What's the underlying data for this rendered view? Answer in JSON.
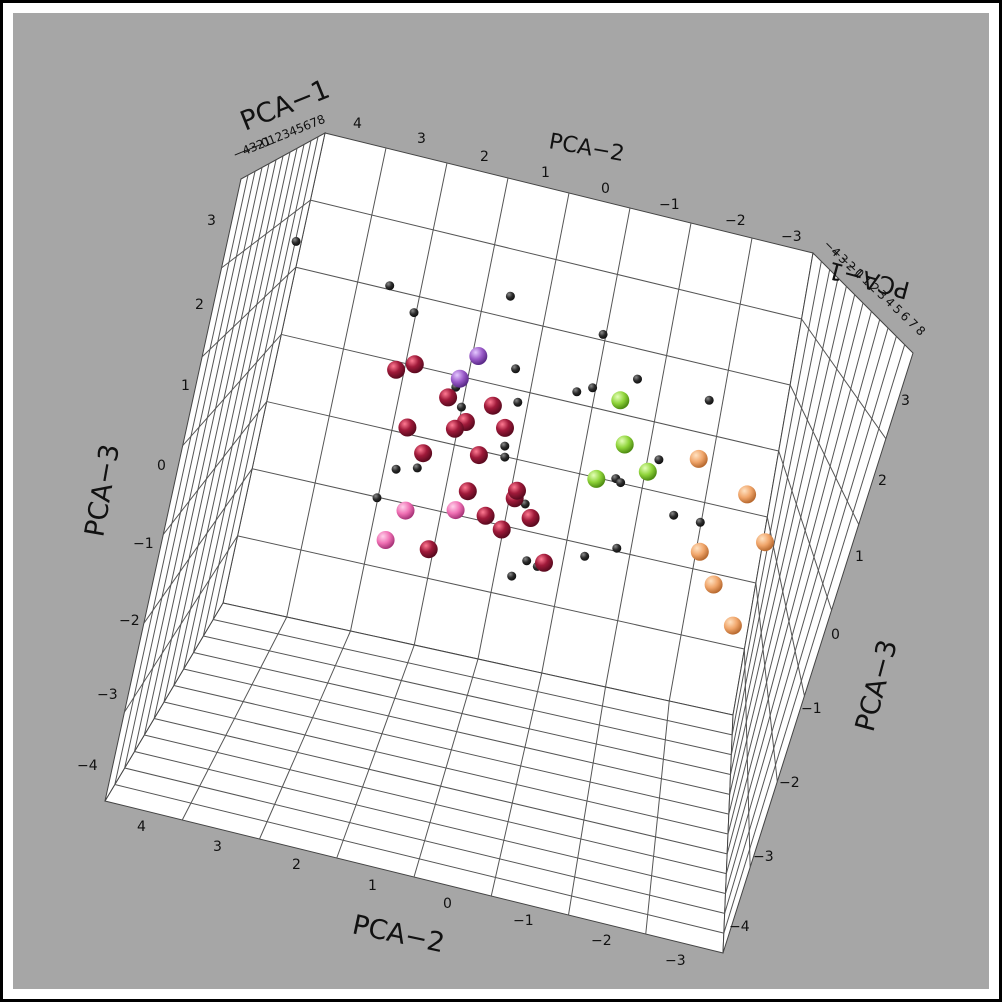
{
  "chart_data": {
    "type": "scatter",
    "projection": "3d",
    "axis_titles": {
      "pca1": "PCA−1",
      "pca2": "PCA−2",
      "pca3": "PCA−3"
    },
    "ticks": {
      "pca2": [
        "4",
        "3",
        "2",
        "1",
        "0",
        "−1",
        "−2",
        "−3"
      ],
      "pca3": [
        "3",
        "2",
        "1",
        "0",
        "−1",
        "−2",
        "−3",
        "−4"
      ],
      "pca1": [
        "−4",
        "−3",
        "−2",
        "−1",
        "0",
        "1",
        "2",
        "3",
        "4",
        "5",
        "6",
        "7",
        "8"
      ]
    },
    "ranges": {
      "pca1": [
        -4,
        8
      ],
      "pca2": [
        -3,
        4
      ],
      "pca3": [
        -4,
        3
      ]
    },
    "grid": true,
    "background": "#a6a6a6",
    "series": [
      {
        "color": "#2b2b2b",
        "marker": "small sphere",
        "points": [
          [
            -2.1,
            4.5,
            2.2
          ],
          [
            0.0,
            3.2,
            1.8
          ],
          [
            1.5,
            1.6,
            2.0
          ],
          [
            -1.0,
            0.1,
            1.9
          ],
          [
            -0.8,
            1.2,
            1.1
          ],
          [
            2.2,
            2.9,
            1.4
          ],
          [
            -2.2,
            1.0,
            0.7
          ],
          [
            -3.0,
            -0.6,
            0.0
          ],
          [
            0.6,
            2.6,
            -0.8
          ],
          [
            1.8,
            0.8,
            -0.9
          ],
          [
            2.5,
            -0.4,
            -0.3
          ],
          [
            -1.2,
            0.3,
            -1.6
          ],
          [
            -0.5,
            1.1,
            -0.2
          ],
          [
            0.2,
            -0.5,
            0.4
          ],
          [
            1.3,
            0.2,
            1.0
          ],
          [
            0.7,
            1.9,
            0.3
          ],
          [
            2.8,
            1.3,
            -0.2
          ],
          [
            -2.6,
            -0.8,
            -1.0
          ],
          [
            0.9,
            -1.3,
            -0.5
          ],
          [
            -1.7,
            2.2,
            -0.6
          ],
          [
            3.2,
            0.5,
            0.8
          ],
          [
            -0.2,
            -1.5,
            1.3
          ],
          [
            1.6,
            -0.9,
            0.2
          ],
          [
            -1.4,
            -1.8,
            -0.4
          ],
          [
            0.4,
            0.7,
            -1.9
          ],
          [
            2.0,
            2.1,
            0.5
          ],
          [
            -0.9,
            2.7,
            -1.2
          ],
          [
            1.1,
            -0.2,
            -1.4
          ],
          [
            -2.4,
            0.4,
            -1.5
          ],
          [
            3.0,
            -0.3,
            1.2
          ]
        ]
      },
      {
        "color": "#a01a3a",
        "marker": "large sphere",
        "points": [
          [
            0.5,
            2.1,
            0.4
          ],
          [
            0.8,
            1.8,
            0.1
          ],
          [
            0.3,
            1.5,
            -0.3
          ],
          [
            1.0,
            2.3,
            -0.5
          ],
          [
            -0.2,
            1.2,
            0.2
          ],
          [
            0.6,
            0.9,
            -0.8
          ],
          [
            1.4,
            1.6,
            -0.9
          ],
          [
            -0.5,
            2.6,
            0.8
          ],
          [
            0.9,
            1.0,
            -1.3
          ],
          [
            0.1,
            0.6,
            -1.0
          ],
          [
            1.2,
            2.6,
            -0.2
          ],
          [
            -0.8,
            1.4,
            0.5
          ],
          [
            0.4,
            0.3,
            -1.6
          ],
          [
            1.7,
            1.3,
            -1.2
          ],
          [
            0.7,
            2.9,
            0.6
          ],
          [
            -1.2,
            0.8,
            -0.6
          ],
          [
            2.2,
            2.0,
            -0.1
          ],
          [
            0.2,
            1.9,
            -1.8
          ]
        ]
      },
      {
        "color": "#f0a56a",
        "marker": "large sphere",
        "points": [
          [
            -2.3,
            -2.4,
            0.2
          ],
          [
            -2.6,
            -2.8,
            -0.4
          ],
          [
            -2.1,
            -2.2,
            -1.2
          ],
          [
            -1.8,
            -1.9,
            -0.8
          ],
          [
            -2.4,
            -2.6,
            -1.7
          ],
          [
            -1.6,
            -1.6,
            0.5
          ]
        ]
      },
      {
        "color": "#8fd43a",
        "marker": "large sphere",
        "points": [
          [
            -0.4,
            -0.3,
            1.0
          ],
          [
            -0.6,
            -0.5,
            0.4
          ],
          [
            -0.3,
            -0.2,
            -0.2
          ],
          [
            -0.7,
            -0.9,
            0.1
          ]
        ]
      },
      {
        "color": "#f070b4",
        "marker": "large sphere",
        "points": [
          [
            1.6,
            2.4,
            -1.4
          ],
          [
            1.9,
            2.6,
            -1.9
          ],
          [
            1.2,
            1.7,
            -1.2
          ]
        ]
      },
      {
        "color": "#9a5ac8",
        "marker": "large sphere",
        "points": [
          [
            0.3,
            1.8,
            1.1
          ],
          [
            0.6,
            2.0,
            0.7
          ]
        ]
      }
    ]
  }
}
